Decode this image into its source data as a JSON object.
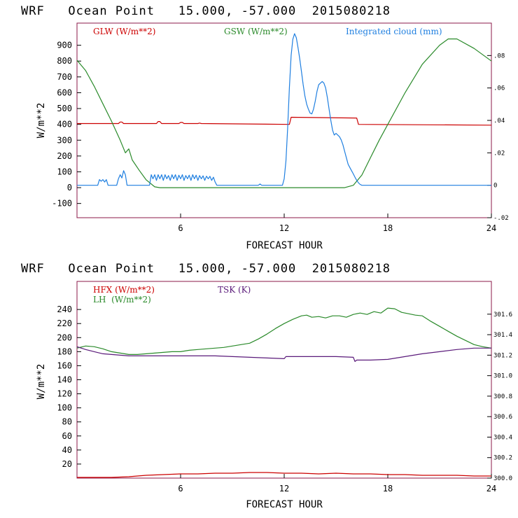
{
  "chart_data": [
    {
      "type": "line",
      "title": "WRF   Ocean Point   15.000, -57.000  2015080218",
      "xlabel": "FORECAST HOUR",
      "ylabel": "W/m**2",
      "xlim": [
        0,
        24
      ],
      "ylim": [
        -190,
        1040
      ],
      "y2lim": [
        -0.02,
        0.1
      ],
      "xticks": [
        6,
        12,
        18,
        24
      ],
      "yticks": [
        -100,
        0,
        100,
        200,
        300,
        400,
        500,
        600,
        700,
        800,
        900
      ],
      "y2ticks": [
        -0.02,
        0,
        0.02,
        0.04,
        0.06,
        0.08
      ],
      "xtick_labels": [
        "6",
        "12",
        "18",
        "24"
      ],
      "ytick_labels": [
        "-100",
        "0",
        "100",
        "200",
        "300",
        "400",
        "500",
        "600",
        "700",
        "800",
        "900"
      ],
      "y2tick_labels": [
        "-.02",
        "0",
        ".02",
        ".04",
        ".06",
        ".08"
      ],
      "series": [
        {
          "name": "GLW (W/m**2)",
          "color": "#cc0000",
          "axis": "left",
          "x": [
            0,
            2.4,
            2.5,
            2.6,
            2.7,
            4.6,
            4.7,
            4.8,
            4.9,
            5.9,
            6,
            6.1,
            6.2,
            7,
            7.1,
            7.2,
            12.3,
            12.4,
            16.2,
            16.3,
            24
          ],
          "y": [
            405,
            405,
            415,
            415,
            405,
            405,
            418,
            418,
            405,
            405,
            412,
            412,
            405,
            405,
            408,
            405,
            400,
            445,
            440,
            400,
            395
          ]
        },
        {
          "name": "GSW (W/m**2)",
          "color": "#2a8a2a",
          "axis": "left",
          "x": [
            0,
            0.5,
            1,
            1.5,
            2,
            2.5,
            2.8,
            3,
            3.2,
            3.6,
            4,
            4.5,
            4.8,
            15.5,
            16,
            16.5,
            17,
            17.5,
            18,
            19,
            20,
            21,
            21.5,
            22,
            23,
            24
          ],
          "y": [
            805,
            740,
            640,
            530,
            420,
            300,
            220,
            245,
            175,
            110,
            50,
            5,
            0,
            0,
            15,
            80,
            190,
            300,
            400,
            600,
            780,
            900,
            940,
            940,
            880,
            800
          ]
        },
        {
          "name": "Integrated cloud (mm)",
          "color": "#1f7fe0",
          "axis": "right",
          "x": [
            0,
            1.2,
            1.3,
            1.4,
            1.5,
            1.6,
            1.7,
            1.8,
            2.3,
            2.4,
            2.5,
            2.6,
            2.7,
            2.8,
            2.9,
            4.2,
            4.3,
            4.4,
            4.5,
            4.6,
            4.7,
            4.8,
            4.9,
            5,
            5.1,
            5.2,
            5.3,
            5.4,
            5.5,
            5.6,
            5.7,
            5.8,
            5.9,
            6,
            6.1,
            6.2,
            6.3,
            6.4,
            6.5,
            6.6,
            6.7,
            6.8,
            6.9,
            7,
            7.1,
            7.2,
            7.3,
            7.4,
            7.5,
            7.6,
            7.7,
            7.8,
            7.9,
            8,
            8.1,
            10.5,
            10.6,
            10.7,
            11.9,
            12,
            12.1,
            12.2,
            12.3,
            12.4,
            12.5,
            12.6,
            12.7,
            12.8,
            12.9,
            13,
            13.1,
            13.2,
            13.3,
            13.4,
            13.5,
            13.6,
            13.7,
            13.8,
            13.9,
            14,
            14.1,
            14.2,
            14.3,
            14.4,
            14.5,
            14.6,
            14.7,
            14.8,
            14.9,
            15,
            15.1,
            15.2,
            15.3,
            15.4,
            15.5,
            15.6,
            15.7,
            15.8,
            15.9,
            16,
            16.1,
            16.2,
            16.3,
            16.4,
            16.5,
            16.6,
            24
          ],
          "y": [
            0,
            0,
            0.0035,
            0.0025,
            0.0035,
            0.002,
            0.0035,
            0,
            0,
            0.004,
            0.0065,
            0.0045,
            0.009,
            0.0065,
            0,
            0,
            0.0065,
            0.004,
            0.0065,
            0.003,
            0.0065,
            0.004,
            0.0065,
            0.003,
            0.0065,
            0.004,
            0.006,
            0.003,
            0.0065,
            0.004,
            0.0065,
            0.003,
            0.0062,
            0.004,
            0.0065,
            0.003,
            0.006,
            0.004,
            0.0062,
            0.003,
            0.0065,
            0.004,
            0.0062,
            0.003,
            0.006,
            0.004,
            0.0058,
            0.003,
            0.0056,
            0.004,
            0.0055,
            0.003,
            0.005,
            0.002,
            0,
            0,
            0.0008,
            0,
            0,
            0.004,
            0.015,
            0.035,
            0.06,
            0.08,
            0.09,
            0.0935,
            0.091,
            0.085,
            0.078,
            0.07,
            0.062,
            0.055,
            0.05,
            0.047,
            0.0445,
            0.044,
            0.047,
            0.052,
            0.058,
            0.062,
            0.063,
            0.064,
            0.063,
            0.06,
            0.054,
            0.047,
            0.04,
            0.034,
            0.031,
            0.032,
            0.031,
            0.03,
            0.028,
            0.025,
            0.021,
            0.017,
            0.013,
            0.011,
            0.009,
            0.007,
            0.005,
            0.003,
            0.0015,
            0.0005,
            0,
            0,
            0
          ]
        }
      ],
      "legend": [
        {
          "label": "GLW (W/m**2)",
          "color": "#cc0000"
        },
        {
          "label": "GSW (W/m**2)",
          "color": "#2a8a2a"
        },
        {
          "label": "Integrated cloud (mm)",
          "color": "#1f7fe0"
        }
      ]
    },
    {
      "type": "line",
      "title": "WRF   Ocean Point   15.000, -57.000  2015080218",
      "xlabel": "FORECAST HOUR",
      "ylabel": "W/m**2",
      "xlim": [
        0,
        24
      ],
      "ylim": [
        0,
        280
      ],
      "y2lim": [
        300.0,
        301.92
      ],
      "xticks": [
        6,
        12,
        18,
        24
      ],
      "yticks": [
        20,
        40,
        60,
        80,
        100,
        120,
        140,
        160,
        180,
        200,
        220,
        240
      ],
      "y2ticks": [
        300.0,
        300.2,
        300.4,
        300.6,
        300.8,
        301.0,
        301.2,
        301.4,
        301.6
      ],
      "xtick_labels": [
        "6",
        "12",
        "18",
        "24"
      ],
      "ytick_labels": [
        "20",
        "40",
        "60",
        "80",
        "100",
        "120",
        "140",
        "160",
        "180",
        "200",
        "220",
        "240"
      ],
      "y2tick_labels": [
        "300.0",
        "300.2",
        "300.4",
        "300.6",
        "300.8",
        "301.0",
        "301.2",
        "301.4",
        "301.6"
      ],
      "series": [
        {
          "name": "HFX (W/m**2)",
          "color": "#cc0000",
          "axis": "left",
          "x": [
            0,
            2,
            3,
            4,
            5,
            6,
            7,
            8,
            9,
            10,
            11,
            12,
            13,
            14,
            15,
            16,
            17,
            18,
            19,
            20,
            21,
            22,
            23,
            24
          ],
          "y": [
            1,
            1,
            2,
            4,
            5,
            6,
            6,
            7,
            7,
            8,
            8,
            7,
            7,
            6,
            7,
            6,
            6,
            5,
            5,
            4,
            4,
            4,
            3,
            3
          ]
        },
        {
          "name": "LH (W/m**2)",
          "color": "#2a8a2a",
          "axis": "left",
          "x": [
            0,
            0.5,
            1,
            1.5,
            2,
            2.5,
            3,
            3.5,
            4,
            4.5,
            5,
            5.5,
            6,
            6.5,
            7,
            7.5,
            8,
            8.5,
            9,
            9.5,
            10,
            10.5,
            11,
            11.5,
            12,
            12.5,
            13,
            13.3,
            13.6,
            14,
            14.4,
            14.8,
            15.2,
            15.6,
            16,
            16.4,
            16.8,
            17.2,
            17.6,
            18,
            18.4,
            18.8,
            19.2,
            19.6,
            20,
            20.5,
            21,
            21.5,
            22,
            22.5,
            23,
            23.5,
            24
          ],
          "y": [
            185,
            188,
            187,
            184,
            180,
            178,
            176,
            176,
            177,
            178,
            179,
            180,
            180,
            182,
            183,
            184,
            185,
            186,
            188,
            190,
            192,
            198,
            205,
            213,
            220,
            226,
            231,
            232,
            229,
            230,
            228,
            231,
            231,
            229,
            233,
            235,
            233,
            237,
            235,
            242,
            241,
            236,
            234,
            232,
            231,
            223,
            216,
            209,
            202,
            196,
            190,
            187,
            185
          ]
        },
        {
          "name": "TSK (K)",
          "color": "#5a1a7a",
          "axis": "left",
          "x": [
            0,
            0.5,
            1,
            1.5,
            2,
            3,
            4,
            5,
            6,
            7,
            8,
            9,
            10,
            11,
            12,
            12.1,
            12.2,
            13,
            14,
            15,
            16,
            16.1,
            16.2,
            17,
            18,
            19,
            20,
            21,
            22,
            23,
            24
          ],
          "y": [
            187,
            183,
            180,
            177,
            176,
            174,
            174,
            174,
            174,
            174,
            174,
            173,
            172,
            171,
            170,
            173,
            173,
            173,
            173,
            173,
            172,
            166,
            168,
            168,
            169,
            173,
            177,
            180,
            183,
            185,
            185
          ]
        }
      ],
      "legend": [
        {
          "label": "HFX (W/m**2)",
          "color": "#cc0000"
        },
        {
          "label": "LH  (W/m**2)",
          "color": "#2a8a2a"
        },
        {
          "label": "TSK (K)",
          "color": "#5a1a7a"
        }
      ]
    }
  ]
}
